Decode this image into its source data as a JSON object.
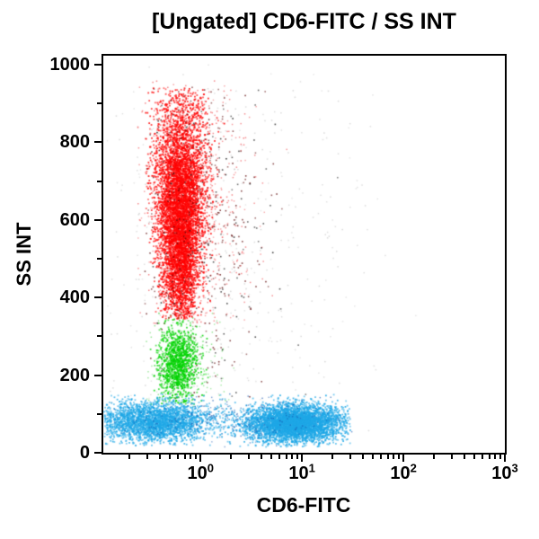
{
  "chart_data": {
    "type": "scatter",
    "title": "[Ungated] CD6-FITC / SS INT",
    "xlabel": "CD6-FITC",
    "ylabel": "SS INT",
    "x_scale": "log",
    "x_range": [
      0.11,
      1000
    ],
    "y_scale": "linear",
    "y_range": [
      0,
      1023
    ],
    "grid": false,
    "legend": "none",
    "frame_color": "#000000",
    "background_color": "#ffffff",
    "y_ticks": [
      {
        "label": "0",
        "value": 0
      },
      {
        "label": "200",
        "value": 200
      },
      {
        "label": "400",
        "value": 400
      },
      {
        "label": "600",
        "value": 600
      },
      {
        "label": "800",
        "value": 800
      },
      {
        "label": "1000",
        "value": 1000
      }
    ],
    "y_minor_ticks": [
      100,
      300,
      500,
      700,
      900
    ],
    "x_ticks": [
      {
        "base": "10",
        "exp": "0",
        "value": 1
      },
      {
        "base": "10",
        "exp": "1",
        "value": 10
      },
      {
        "base": "10",
        "exp": "2",
        "value": 100
      },
      {
        "base": "10",
        "exp": "3",
        "value": 1000
      }
    ],
    "seed": 42,
    "populations": [
      {
        "name": "debris-noise-gray",
        "color": "#a8a8a8",
        "opacity": 0.45,
        "count": 430,
        "x_log_mean": 0.05,
        "x_log_sd": 0.75,
        "x_log_clip": [
          -0.93,
          2.4
        ],
        "y_mean": 520,
        "y_sd": 340,
        "y_clip": [
          15,
          1005
        ],
        "dot": 1.5
      },
      {
        "name": "granulocytes-red",
        "color": "#ff0000",
        "opacity": 0.88,
        "count": 6500,
        "x_log_mean": -0.2,
        "x_log_sd": 0.115,
        "x_log_clip": [
          -0.54,
          0.3
        ],
        "y_mean": 615,
        "y_sd": 150,
        "y_clip": [
          345,
          940
        ],
        "dot": 1.8,
        "x_sd_slope": 0.55
      },
      {
        "name": "granulocytes-fringe-red",
        "color": "#e8000b",
        "opacity": 0.5,
        "count": 650,
        "x_log_mean": -0.1,
        "x_log_sd": 0.3,
        "x_log_clip": [
          -0.62,
          0.95
        ],
        "y_mean": 610,
        "y_sd": 215,
        "y_clip": [
          330,
          960
        ],
        "dot": 1.5
      },
      {
        "name": "dark-red-events",
        "color": "#5a0000",
        "opacity": 0.8,
        "count": 300,
        "x_log_mean": -0.02,
        "x_log_sd": 0.33,
        "x_log_clip": [
          -0.55,
          1.35
        ],
        "y_mean": 580,
        "y_sd": 245,
        "y_clip": [
          140,
          950
        ],
        "dot": 1.6
      },
      {
        "name": "black-events",
        "color": "#111111",
        "opacity": 0.8,
        "count": 130,
        "x_log_mean": 0.05,
        "x_log_sd": 0.4,
        "x_log_clip": [
          -0.5,
          1.5
        ],
        "y_mean": 560,
        "y_sd": 265,
        "y_clip": [
          120,
          940
        ],
        "dot": 1.6
      },
      {
        "name": "monocytes-green",
        "color": "#00d400",
        "opacity": 0.88,
        "count": 1150,
        "x_log_mean": -0.22,
        "x_log_sd": 0.1,
        "x_log_clip": [
          -0.5,
          0.14
        ],
        "y_mean": 228,
        "y_sd": 50,
        "y_clip": [
          125,
          345
        ],
        "dot": 1.8
      },
      {
        "name": "monocytes-fringe-green",
        "color": "#00c000",
        "opacity": 0.45,
        "count": 220,
        "x_log_mean": -0.18,
        "x_log_sd": 0.2,
        "x_log_clip": [
          -0.6,
          0.35
        ],
        "y_mean": 230,
        "y_sd": 85,
        "y_clip": [
          105,
          360
        ],
        "dot": 1.5
      },
      {
        "name": "lymphocytes-cd6neg-blue",
        "color": "#1ea7e6",
        "opacity": 0.8,
        "count": 2900,
        "x_log_mean": -0.45,
        "x_log_sd": 0.3,
        "x_log_clip": [
          -0.95,
          0.35
        ],
        "y_mean": 82,
        "y_sd": 26,
        "y_clip": [
          18,
          152
        ],
        "dot": 1.8
      },
      {
        "name": "lymphocytes-cd6pos-blue",
        "color": "#1ea7e6",
        "opacity": 0.88,
        "count": 4300,
        "x_log_mean": 0.92,
        "x_log_sd": 0.24,
        "x_log_clip": [
          0.2,
          1.48
        ],
        "y_mean": 76,
        "y_sd": 24,
        "y_clip": [
          15,
          150
        ],
        "dot": 1.8
      },
      {
        "name": "lymphocytes-dark-specks",
        "color": "#1557b0",
        "opacity": 0.65,
        "count": 260,
        "x_log_mean": 0.3,
        "x_log_sd": 0.55,
        "x_log_clip": [
          -0.9,
          1.5
        ],
        "y_mean": 85,
        "y_sd": 32,
        "y_clip": [
          15,
          160
        ],
        "dot": 1.5
      }
    ]
  }
}
